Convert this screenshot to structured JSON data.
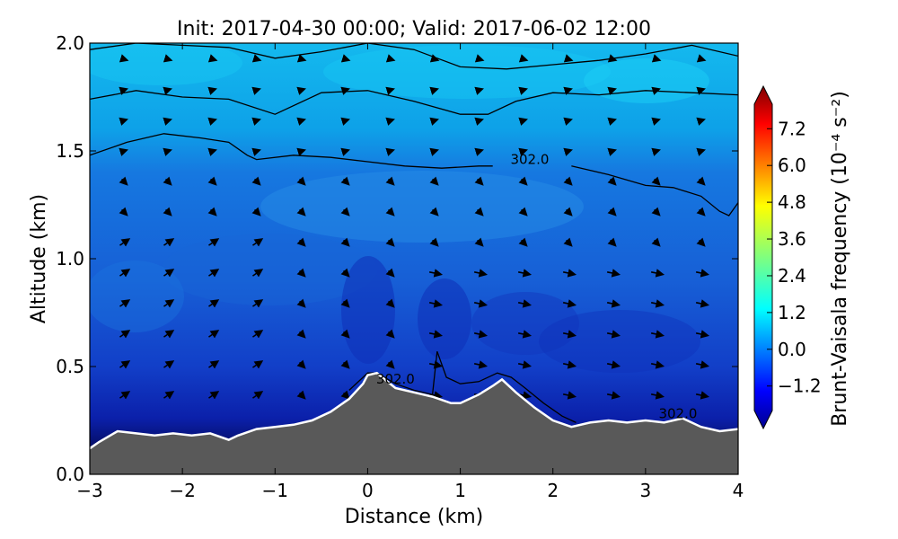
{
  "chart_data": {
    "type": "contourf",
    "title": "Init: 2017-04-30 00:00; Valid: 2017-06-02 12:00",
    "xlabel": "Distance (km)",
    "ylabel": "Altitude (km)",
    "xlim": [
      -3,
      4
    ],
    "ylim": [
      0.0,
      2.0
    ],
    "xticks": [
      "−3",
      "−2",
      "−1",
      "0",
      "1",
      "2",
      "3",
      "4"
    ],
    "yticks": [
      "0.0",
      "0.5",
      "1.0",
      "1.5",
      "2.0"
    ],
    "terrain": {
      "x": [
        -3.0,
        -2.9,
        -2.7,
        -2.5,
        -2.3,
        -2.1,
        -1.9,
        -1.7,
        -1.5,
        -1.4,
        -1.2,
        -1.0,
        -0.8,
        -0.6,
        -0.4,
        -0.2,
        -0.05,
        0.0,
        0.1,
        0.3,
        0.5,
        0.7,
        0.9,
        1.0,
        1.2,
        1.35,
        1.45,
        1.6,
        1.8,
        2.0,
        2.2,
        2.4,
        2.6,
        2.8,
        3.0,
        3.2,
        3.4,
        3.6,
        3.8,
        4.0
      ],
      "y": [
        0.12,
        0.15,
        0.2,
        0.19,
        0.18,
        0.19,
        0.18,
        0.19,
        0.16,
        0.18,
        0.21,
        0.22,
        0.23,
        0.25,
        0.29,
        0.35,
        0.42,
        0.46,
        0.47,
        0.4,
        0.38,
        0.36,
        0.33,
        0.33,
        0.37,
        0.41,
        0.44,
        0.38,
        0.31,
        0.25,
        0.22,
        0.24,
        0.25,
        0.24,
        0.25,
        0.24,
        0.26,
        0.22,
        0.2,
        0.21
      ]
    },
    "colorbar": {
      "label": "Brunt-Vaisala frequency (10⁻⁴ s⁻²)",
      "ticks": [
        "7.2",
        "6.0",
        "4.8",
        "3.6",
        "2.4",
        "1.2",
        "0.0",
        "−1.2"
      ],
      "tick_values": [
        7.2,
        6.0,
        4.8,
        3.6,
        2.4,
        1.2,
        0.0,
        -1.2
      ],
      "range": [
        -2.0,
        8.0
      ]
    },
    "contour_lines": [
      {
        "level_label": "",
        "x": [
          -3.0,
          -2.5,
          -2.0,
          -1.5,
          -1.0,
          -0.5,
          0.0,
          0.5,
          1.0,
          1.5,
          2.0,
          2.5,
          3.0,
          3.5,
          4.0
        ],
        "y": [
          1.97,
          2.0,
          1.99,
          1.98,
          1.93,
          1.96,
          2.0,
          1.97,
          1.89,
          1.88,
          1.9,
          1.92,
          1.95,
          1.99,
          1.94
        ]
      },
      {
        "level_label": "",
        "x": [
          -3.0,
          -2.5,
          -2.0,
          -1.5,
          -1.0,
          -0.5,
          0.0,
          0.5,
          1.0,
          1.3,
          1.6,
          2.0,
          2.5,
          3.0,
          3.5,
          4.0
        ],
        "y": [
          1.74,
          1.78,
          1.75,
          1.74,
          1.67,
          1.77,
          1.78,
          1.73,
          1.67,
          1.67,
          1.73,
          1.77,
          1.76,
          1.78,
          1.77,
          1.76
        ]
      },
      {
        "level_label": "302.0",
        "label_x": 1.75,
        "label_y": 1.44,
        "x": [
          -3.0,
          -2.6,
          -2.2,
          -1.8,
          -1.5,
          -1.3,
          -1.2,
          -0.8,
          -0.4,
          0.0,
          0.4,
          0.8,
          1.2,
          1.35
        ],
        "y": [
          1.48,
          1.54,
          1.58,
          1.56,
          1.54,
          1.48,
          1.46,
          1.48,
          1.47,
          1.45,
          1.43,
          1.42,
          1.43,
          1.43
        ]
      },
      {
        "level_label": "",
        "x": [
          2.2,
          2.6,
          3.0,
          3.3,
          3.6,
          3.8,
          3.9,
          4.0
        ],
        "y": [
          1.43,
          1.39,
          1.34,
          1.33,
          1.29,
          1.22,
          1.2,
          1.26
        ]
      },
      {
        "level_label": "302.0",
        "label_x": 0.3,
        "label_y": 0.42,
        "x": [
          -0.2,
          -0.05,
          0.0,
          0.1,
          0.3,
          0.5,
          0.7,
          0.75,
          0.85,
          1.0,
          1.2,
          1.4,
          1.55,
          1.7,
          1.9,
          2.1,
          2.25
        ],
        "y": [
          0.39,
          0.45,
          0.47,
          0.47,
          0.42,
          0.39,
          0.37,
          0.57,
          0.45,
          0.42,
          0.43,
          0.47,
          0.45,
          0.4,
          0.33,
          0.27,
          0.24
        ]
      },
      {
        "level_label": "302.0",
        "label_x": 3.35,
        "label_y": 0.26,
        "x": [],
        "y": []
      }
    ]
  }
}
